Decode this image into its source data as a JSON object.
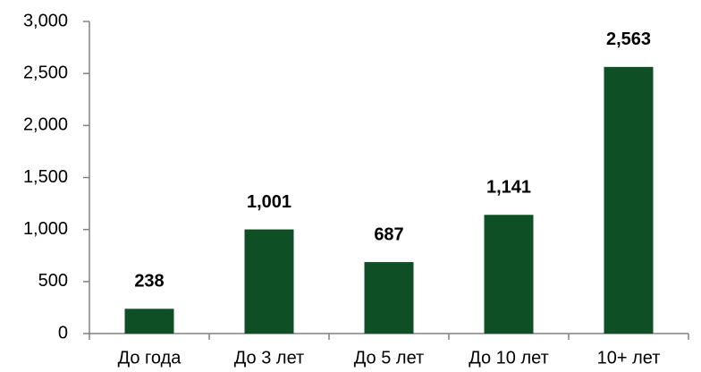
{
  "chart_data": {
    "type": "bar",
    "categories": [
      "До года",
      "До 3 лет",
      "До 5 лет",
      "До 10 лет",
      "10+ лет"
    ],
    "values": [
      238,
      1001,
      687,
      1141,
      2563
    ],
    "value_labels": [
      "238",
      "1,001",
      "687",
      "1,141",
      "2,563"
    ],
    "color": "#0f4f25",
    "ylim": [
      0,
      3000
    ],
    "yticks": [
      0,
      500,
      {
        "value": 1000,
        "label": "1,000"
      },
      {
        "value": 1500,
        "label": "1,500"
      },
      {
        "value": 2000,
        "label": "2,000"
      },
      {
        "value": 2500,
        "label": "2,500"
      },
      {
        "value": 3000,
        "label": "3,000"
      }
    ],
    "grid": false
  }
}
